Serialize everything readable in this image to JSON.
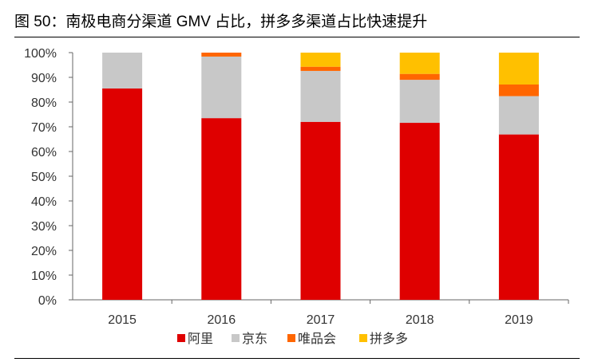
{
  "title": "图 50：南极电商分渠道 GMV 占比，拼多多渠道占比快速提升",
  "chart_data": {
    "type": "bar",
    "stacked": true,
    "categories": [
      "2015",
      "2016",
      "2017",
      "2018",
      "2019"
    ],
    "series": [
      {
        "name": "阿里",
        "color": "#DF0000",
        "values": [
          85.5,
          73.5,
          72.0,
          71.6,
          66.9
        ]
      },
      {
        "name": "京东",
        "color": "#C8C8C8",
        "values": [
          14.5,
          24.9,
          20.6,
          17.4,
          15.5
        ]
      },
      {
        "name": "唯品会",
        "color": "#FF6600",
        "values": [
          0,
          1.6,
          1.7,
          2.4,
          4.7
        ]
      },
      {
        "name": "拼多多",
        "color": "#FFC000",
        "values": [
          0,
          0,
          5.7,
          8.6,
          12.9
        ]
      }
    ],
    "ylim": [
      0,
      100
    ],
    "yticks": [
      "0%",
      "10%",
      "20%",
      "30%",
      "40%",
      "50%",
      "60%",
      "70%",
      "80%",
      "90%",
      "100%"
    ],
    "grid": false,
    "legend": "bottom"
  }
}
